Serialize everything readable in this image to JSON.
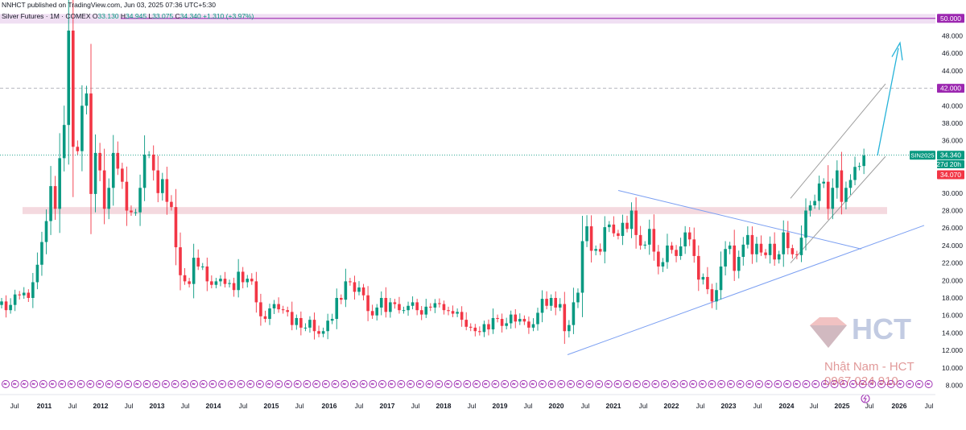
{
  "header": {
    "published": "NNHCT published on TradingView.com, Jun 03, 2025 07:36 UTC+5:30",
    "symbol": "Silver Futures · 1M · COMEX",
    "open_label": "O",
    "open": "33.130",
    "high_label": "H",
    "high": "34.945",
    "low_label": "L",
    "low": "33.075",
    "close_label": "C",
    "close": "34.340",
    "change": "+1.310 (+3.97%)"
  },
  "price_labels": {
    "level_50": "50.000",
    "level_42": "42.000",
    "ticker": "SIN2025",
    "last": "34.340",
    "countdown": "27d 20h",
    "prev": "34.070"
  },
  "watermark": {
    "brand": "HCT",
    "name": "Nhật Nam - HCT",
    "phone": "0967 024 910"
  },
  "colors": {
    "up": "#089981",
    "down": "#f23645",
    "trendline": "#7b9ff2",
    "channel": "#9e9e9e",
    "arrow": "#26b3d9",
    "purple": "#9c27b0",
    "zone": "#f4d9df"
  },
  "chart_data": {
    "type": "candlestick",
    "instrument": "Silver Futures · 1M · COMEX",
    "y_ticks": [
      8,
      10,
      12,
      14,
      16,
      18,
      20,
      22,
      24,
      26,
      28,
      30,
      32,
      34,
      36,
      38,
      40,
      42,
      44,
      46,
      48,
      50
    ],
    "ylim": [
      8,
      51
    ],
    "x_ticks": [
      "Jul",
      "2011",
      "Jul",
      "2012",
      "Jul",
      "2013",
      "Jul",
      "2014",
      "Jul",
      "2015",
      "Jul",
      "2016",
      "Jul",
      "2017",
      "Jul",
      "2018",
      "Jul",
      "2019",
      "Jul",
      "2020",
      "Jul",
      "2021",
      "Jul",
      "2022",
      "Jul",
      "2023",
      "Jul",
      "2024",
      "Jul",
      "2025",
      "Jul",
      "2026",
      "Jul"
    ],
    "start_month": "2010-01",
    "closes": [
      17.6,
      16.6,
      17.2,
      18.4,
      18.3,
      18.6,
      18.0,
      19.8,
      21.8,
      24.4,
      26.8,
      30.8,
      28.2,
      34.0,
      37.8,
      48.6,
      35.3,
      34.8,
      40.0,
      41.4,
      29.9,
      34.6,
      32.6,
      28.2,
      30.6,
      34.6,
      32.8,
      31.3,
      28.0,
      27.8,
      27.8,
      30.6,
      34.4,
      34.4,
      32.6,
      30.0,
      31.6,
      29.0,
      28.4,
      23.8,
      20.6,
      19.9,
      19.6,
      22.6,
      21.6,
      21.6,
      19.9,
      19.5,
      19.9,
      20.2,
      19.6,
      19.7,
      18.9,
      21.0,
      19.8,
      20.2,
      19.9,
      17.5,
      15.9,
      15.6,
      16.8,
      17.3,
      16.7,
      16.6,
      16.4,
      14.9,
      15.7,
      14.6,
      14.6,
      15.5,
      14.2,
      13.9,
      14.2,
      15.4,
      15.6,
      18.0,
      17.8,
      19.9,
      19.8,
      18.7,
      19.2,
      18.3,
      16.5,
      16.0,
      16.9,
      18.0,
      16.4,
      17.5,
      17.3,
      16.6,
      16.6,
      17.1,
      17.5,
      16.6,
      16.1,
      17.0,
      16.9,
      17.4,
      17.3,
      16.6,
      16.5,
      16.2,
      16.4,
      15.5,
      14.7,
      14.6,
      14.2,
      14.1,
      15.0,
      14.4,
      15.7,
      15.6,
      14.8,
      15.1,
      16.1,
      15.3,
      15.6,
      15.3,
      14.6,
      15.0,
      16.3,
      17.9,
      17.1,
      18.0,
      16.9,
      17.3,
      14.2,
      14.9,
      17.5,
      18.6,
      24.5,
      26.2,
      23.4,
      23.6,
      23.3,
      26.1,
      26.4,
      25.4,
      25.1,
      26.6,
      25.9,
      28.0,
      25.2,
      24.0,
      24.1,
      25.9,
      23.3,
      21.6,
      22.1,
      24.0,
      23.5,
      22.8,
      23.9,
      25.5,
      24.7,
      22.8,
      20.1,
      20.4,
      19.0,
      17.6,
      18.9,
      21.6,
      23.6,
      24.0,
      21.1,
      22.7,
      24.1,
      25.2,
      23.0,
      24.2,
      23.2,
      22.9,
      24.2,
      22.4,
      23.0,
      25.5,
      23.7,
      23.0,
      22.9,
      24.9,
      28.0,
      28.6,
      29.1,
      31.1,
      31.3,
      28.2,
      30.6,
      32.6,
      29.0,
      30.6,
      31.5,
      33.0,
      33.1,
      34.3
    ],
    "zones": [
      {
        "from": 49.4,
        "to": 50.5
      },
      {
        "from": 27.6,
        "to": 28.4
      }
    ],
    "horizontal_lines": [
      42.0,
      34.34
    ],
    "annotations": [
      "rising trendline",
      "falling trendline",
      "ascending channel",
      "upward projection arrow to ~47"
    ]
  }
}
